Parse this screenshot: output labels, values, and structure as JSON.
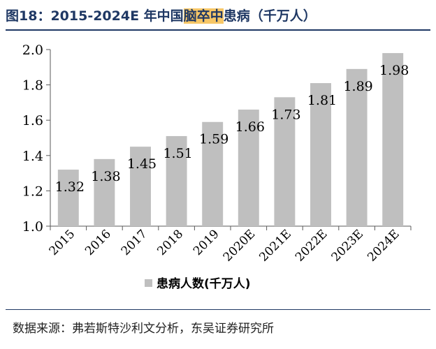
{
  "title": {
    "prefix": "图18：2015-2024E 年中国",
    "highlight": "脑卒中",
    "suffix": "患病（千万人）"
  },
  "source": "数据来源：弗若斯特沙利文分析，东吴证券研究所",
  "colors": {
    "title": "#1f3864",
    "highlight": "#f7c767",
    "bar": "#bfbfbf",
    "axis": "#595959"
  },
  "chart_data": {
    "type": "bar",
    "categories": [
      "2015",
      "2016",
      "2017",
      "2018",
      "2019",
      "2020E",
      "2021E",
      "2022E",
      "2023E",
      "2024E"
    ],
    "series": [
      {
        "name": "患病人数(千万人)",
        "values": [
          1.32,
          1.38,
          1.45,
          1.51,
          1.59,
          1.66,
          1.73,
          1.81,
          1.89,
          1.98
        ],
        "labels": [
          "1.32",
          "1.38",
          "1.45",
          "1.51",
          "1.59",
          "1.66",
          "1.73",
          "1.81",
          "1.89",
          "1.98"
        ]
      }
    ],
    "yticks": [
      "1.0",
      "1.2",
      "1.4",
      "1.6",
      "1.8",
      "2.0"
    ],
    "ylim": [
      1.0,
      2.0
    ],
    "xlabel": "",
    "ylabel": "",
    "grid": false,
    "legend": "bottom-center"
  }
}
